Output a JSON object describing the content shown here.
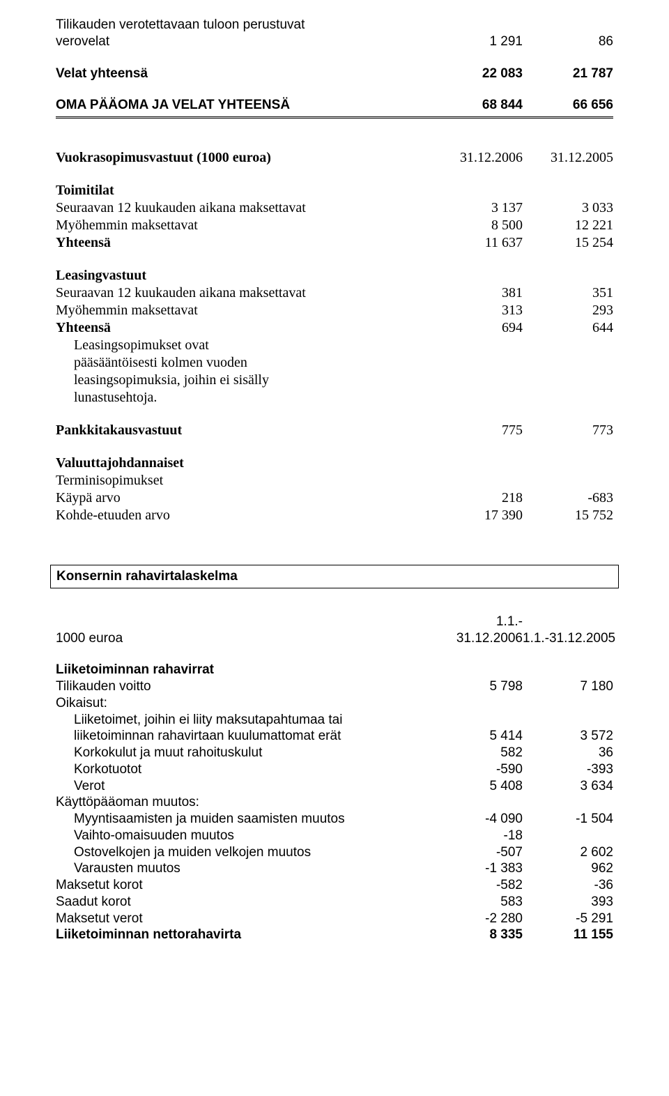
{
  "s1": {
    "r1_label_l1": "Tilikauden verotettavaan tuloon perustuvat",
    "r1_label_l2": "verovelat",
    "r1_c1": "1 291",
    "r1_c2": "86",
    "r2_label": "Velat yhteensä",
    "r2_c1": "22 083",
    "r2_c2": "21 787",
    "r3_label": "OMA PÄÄOMA JA VELAT YHTEENSÄ",
    "r3_c1": "68 844",
    "r3_c2": "66 656"
  },
  "s2": {
    "h_label": "Vuokrasopimusvastuut (1000 euroa)",
    "h_c1": "31.12.2006",
    "h_c2": "31.12.2005",
    "g1_title": "Toimitilat",
    "g1_r1_label": "Seuraavan 12 kuukauden aikana maksettavat",
    "g1_r1_c1": "3 137",
    "g1_r1_c2": "3 033",
    "g1_r2_label": "Myöhemmin maksettavat",
    "g1_r2_c1": "8 500",
    "g1_r2_c2": "12 221",
    "g1_r3_label": "Yhteensä",
    "g1_r3_c1": "11 637",
    "g1_r3_c2": "15 254",
    "g2_title": "Leasingvastuut",
    "g2_r1_label": "Seuraavan 12 kuukauden aikana maksettavat",
    "g2_r1_c1": "381",
    "g2_r1_c2": "351",
    "g2_r2_label": "Myöhemmin maksettavat",
    "g2_r2_c1": "313",
    "g2_r2_c2": "293",
    "g2_r3_label": "Yhteensä",
    "g2_r3_c1": "694",
    "g2_r3_c2": "644",
    "note_l1": "Leasingsopimukset ovat",
    "note_l2": "pääsääntöisesti kolmen vuoden",
    "note_l3": "leasingsopimuksia, joihin ei sisälly",
    "note_l4": "lunastusehtoja.",
    "g3_r1_label": "Pankkitakausvastuut",
    "g3_r1_c1": "775",
    "g3_r1_c2": "773",
    "g4_title": "Valuuttajohdannaiset",
    "g4_sub": "Terminisopimukset",
    "g4_r1_label": "Käypä arvo",
    "g4_r1_c1": "218",
    "g4_r1_c2": "-683",
    "g4_r2_label": "Kohde-etuuden arvo",
    "g4_r2_c1": "17 390",
    "g4_r2_c2": "15 752"
  },
  "s3": {
    "box_title": "Konsernin rahavirtalaskelma",
    "h_label": "1000 euroa",
    "h_c1_l1": "1.1.-",
    "h_c1_l2": "31.12.2006",
    "h_c2": "1.1.-31.12.2005",
    "g1_title": "Liiketoiminnan rahavirrat",
    "r1_label": "Tilikauden voitto",
    "r1_c1": "5 798",
    "r1_c2": "7 180",
    "r2_label": "Oikaisut:",
    "r3_l1": "Liiketoimet, joihin ei liity maksutapahtumaa tai",
    "r3_l2": "liiketoiminnan rahavirtaan kuulumattomat erät",
    "r3_c1": "5 414",
    "r3_c2": "3 572",
    "r4_label": "Korkokulut ja muut rahoituskulut",
    "r4_c1": "582",
    "r4_c2": "36",
    "r5_label": "Korkotuotot",
    "r5_c1": "-590",
    "r5_c2": "-393",
    "r6_label": "Verot",
    "r6_c1": "5 408",
    "r6_c2": "3 634",
    "r7_label": "Käyttöpääoman muutos:",
    "r8_label": "Myyntisaamisten ja muiden saamisten muutos",
    "r8_c1": "-4 090",
    "r8_c2": "-1 504",
    "r9_label": "Vaihto-omaisuuden muutos",
    "r9_c1": "-18",
    "r10_label": "Ostovelkojen ja muiden velkojen muutos",
    "r10_c1": "-507",
    "r10_c2": "2 602",
    "r11_label": "Varausten muutos",
    "r11_c1": "-1 383",
    "r11_c2": "962",
    "r12_label": "Maksetut korot",
    "r12_c1": "-582",
    "r12_c2": "-36",
    "r13_label": "Saadut korot",
    "r13_c1": "583",
    "r13_c2": "393",
    "r14_label": "Maksetut verot",
    "r14_c1": "-2 280",
    "r14_c2": "-5 291",
    "r15_label": "Liiketoiminnan nettorahavirta",
    "r15_c1": "8 335",
    "r15_c2": "11 155"
  }
}
